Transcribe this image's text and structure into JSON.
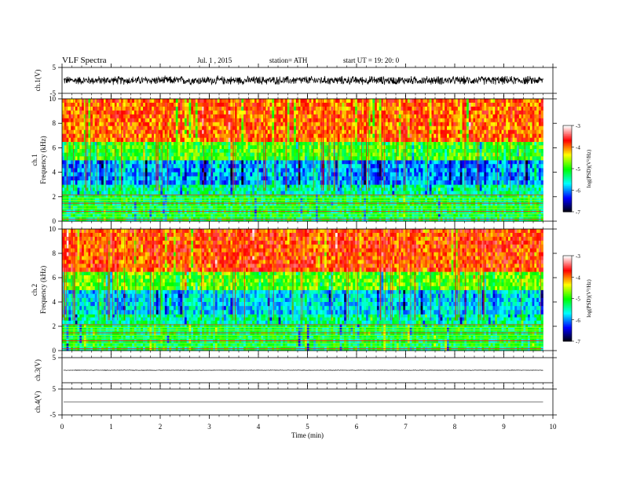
{
  "header": {
    "title": "VLF Spectra",
    "date": "Jul. 1 , 2015",
    "station": "station= ATH",
    "start": "start UT = 19: 20: 0"
  },
  "chart_data": {
    "type": "heatmap",
    "title": "VLF Spectra",
    "xlabel": "Time (min)",
    "xlim": [
      0,
      10
    ],
    "x_ticks": [
      "0",
      "1",
      "2",
      "3",
      "4",
      "5",
      "6",
      "7",
      "8",
      "9",
      "10"
    ],
    "data_end_min": 9.8,
    "panels": [
      {
        "type": "line",
        "ylabel": "ch.1(V)",
        "ylim": [
          -5,
          5
        ],
        "y_ticks": [
          "5",
          "-5"
        ],
        "mean_v": 0,
        "amplitude_v": 1.6,
        "description_values": "broadband noise waveform"
      },
      {
        "type": "heatmap",
        "ylabel_line1": "ch.1",
        "ylabel_line2": "Frequency (kHz)",
        "ylim": [
          0,
          10
        ],
        "y_ticks": [
          "0",
          "2",
          "4",
          "6",
          "8",
          "10"
        ],
        "bands": [
          {
            "f_lo": 0,
            "f_hi": 2.2,
            "log_psd": -5.2
          },
          {
            "f_lo": 2.2,
            "f_hi": 3.0,
            "log_psd": -5.4
          },
          {
            "f_lo": 3.0,
            "f_hi": 5.0,
            "log_psd": -5.9
          },
          {
            "f_lo": 5.0,
            "f_hi": 6.5,
            "log_psd": -4.9
          },
          {
            "f_lo": 6.5,
            "f_hi": 10,
            "log_psd": -3.9
          }
        ]
      },
      {
        "type": "heatmap",
        "ylabel_line1": "ch.2",
        "ylabel_line2": "Frequency (kHz)",
        "ylim": [
          0,
          10
        ],
        "y_ticks": [
          "0",
          "2",
          "4",
          "6",
          "8",
          "10"
        ],
        "bands": [
          {
            "f_lo": 0,
            "f_hi": 2.2,
            "log_psd": -5.2
          },
          {
            "f_lo": 2.2,
            "f_hi": 3.0,
            "log_psd": -5.4
          },
          {
            "f_lo": 3.0,
            "f_hi": 5.0,
            "log_psd": -5.7
          },
          {
            "f_lo": 5.0,
            "f_hi": 6.5,
            "log_psd": -4.8
          },
          {
            "f_lo": 6.5,
            "f_hi": 10,
            "log_psd": -3.8
          }
        ]
      },
      {
        "type": "line",
        "ylabel": "ch.3(V)",
        "ylim": [
          -5,
          5
        ],
        "y_ticks": [
          "5"
        ],
        "mean_v": 0,
        "amplitude_v": 0.1
      },
      {
        "type": "line",
        "ylabel": "ch.4(V)",
        "ylim": [
          -5,
          5
        ],
        "y_ticks": [
          "5",
          "-5"
        ],
        "mean_v": 0,
        "amplitude_v": 0
      }
    ],
    "colorbar": {
      "label": "log(PSD)(V²/Hz)",
      "range": [
        -7,
        -3
      ],
      "ticks": [
        "-3",
        "-4",
        "-5",
        "-6",
        "-7"
      ]
    }
  },
  "colors": {
    "colormap": [
      "#000000",
      "#0000ff",
      "#00ffff",
      "#00ff00",
      "#ffff00",
      "#ff0000",
      "#ffffff"
    ]
  }
}
